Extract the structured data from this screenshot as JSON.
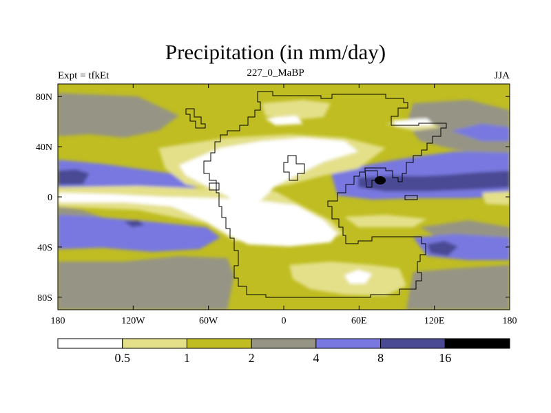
{
  "title": "Precipitation (in mm/day)",
  "subtitle": "227_0_MaBP",
  "left_label": "Expt = tfkEt",
  "right_label": "JJA",
  "x_ticks": [
    "180",
    "120W",
    "60W",
    "0",
    "60E",
    "120E",
    "180"
  ],
  "y_ticks": [
    "80N",
    "40N",
    "0",
    "40S",
    "80S"
  ],
  "colorbar": {
    "labels": [
      "0.5",
      "1",
      "2",
      "4",
      "8",
      "16"
    ],
    "colors": [
      "#ffffff",
      "#e4e08a",
      "#bfbd21",
      "#969484",
      "#7878e0",
      "#4a4a94",
      "#000000"
    ]
  },
  "chart_data": {
    "type": "heatmap",
    "title": "Precipitation (in mm/day)",
    "subtitle": "227_0_MaBP",
    "x_axis": {
      "range": [
        -180,
        180
      ],
      "ticks": [
        "180",
        "120W",
        "60W",
        "0",
        "60E",
        "120E",
        "180"
      ]
    },
    "y_axis": {
      "range": [
        -90,
        90
      ],
      "ticks": [
        "80N",
        "40N",
        "0",
        "40S",
        "80S"
      ]
    },
    "levels": [
      0.5,
      1,
      2,
      4,
      8,
      16
    ],
    "units": "mm/day",
    "season": "JJA"
  }
}
